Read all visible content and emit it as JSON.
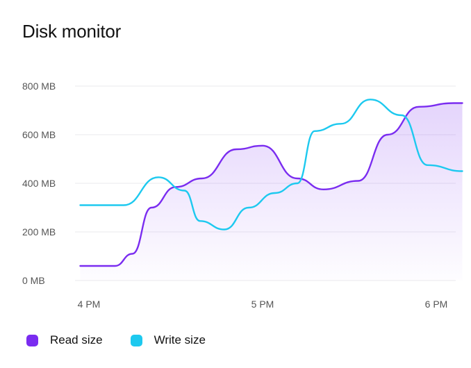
{
  "header": {
    "title": "Disk monitor"
  },
  "colors": {
    "read": "#7a2cf0",
    "write": "#1dc9ef",
    "grid": "#e9e9ee",
    "axis_text": "#555555"
  },
  "chart_data": {
    "type": "line",
    "title": "Disk monitor",
    "xlabel": "",
    "ylabel": "",
    "x_ticks": [
      "4 PM",
      "5 PM",
      "6 PM"
    ],
    "y_ticks": [
      "0 MB",
      "200 MB",
      "400 MB",
      "600 MB",
      "800 MB"
    ],
    "ylim": [
      0,
      800
    ],
    "xlim": [
      -0.05,
      2.15
    ],
    "grid": true,
    "legend_position": "bottom-left",
    "series": [
      {
        "name": "Read size",
        "color": "#7a2cf0",
        "area_fill": true,
        "points": [
          [
            -0.05,
            60
          ],
          [
            0.15,
            60
          ],
          [
            0.25,
            110
          ],
          [
            0.36,
            300
          ],
          [
            0.5,
            385
          ],
          [
            0.65,
            420
          ],
          [
            0.85,
            540
          ],
          [
            1.0,
            555
          ],
          [
            1.2,
            420
          ],
          [
            1.35,
            375
          ],
          [
            1.55,
            410
          ],
          [
            1.72,
            600
          ],
          [
            1.9,
            715
          ],
          [
            2.1,
            730
          ],
          [
            2.15,
            730
          ]
        ]
      },
      {
        "name": "Write size",
        "color": "#1dc9ef",
        "area_fill": false,
        "points": [
          [
            -0.05,
            310
          ],
          [
            0.2,
            310
          ],
          [
            0.4,
            425
          ],
          [
            0.55,
            370
          ],
          [
            0.64,
            245
          ],
          [
            0.78,
            210
          ],
          [
            0.92,
            300
          ],
          [
            1.07,
            360
          ],
          [
            1.2,
            400
          ],
          [
            1.3,
            615
          ],
          [
            1.45,
            645
          ],
          [
            1.62,
            745
          ],
          [
            1.8,
            680
          ],
          [
            1.95,
            475
          ],
          [
            2.15,
            450
          ]
        ]
      }
    ]
  },
  "legend": {
    "items": [
      {
        "label": "Read size",
        "color": "#7a2cf0"
      },
      {
        "label": "Write size",
        "color": "#1dc9ef"
      }
    ]
  }
}
